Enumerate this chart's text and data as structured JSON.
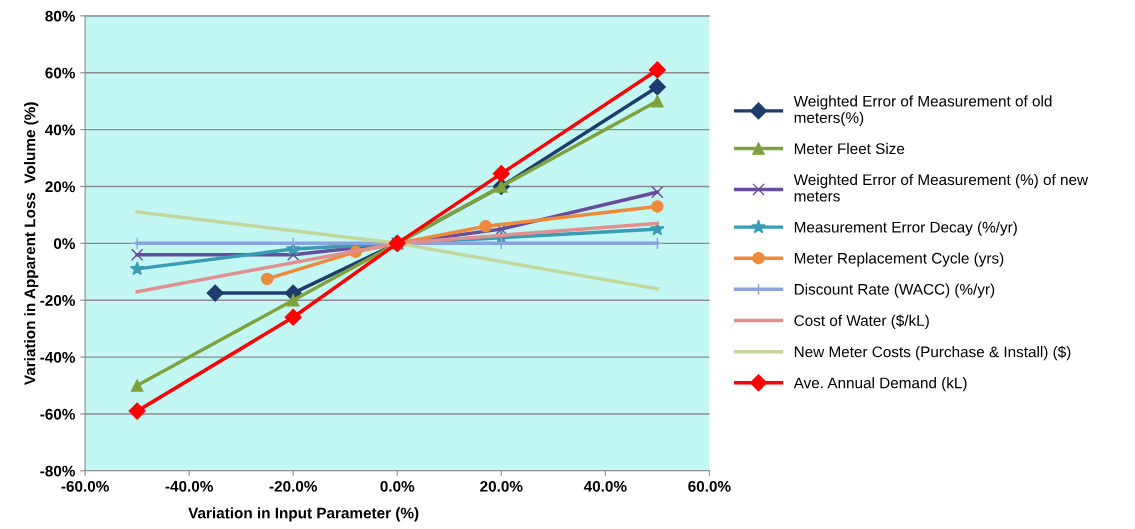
{
  "chart_data": {
    "type": "line",
    "xlabel": "Variation in Input Parameter (%)",
    "ylabel": "Variation in Apparent Loss  Volume (%)",
    "xlim": [
      -60,
      60
    ],
    "ylim": [
      -80,
      80
    ],
    "xticks": [
      {
        "value": -60,
        "label": "-60.0%"
      },
      {
        "value": -40,
        "label": "-40.0%"
      },
      {
        "value": -20,
        "label": "-20.0%"
      },
      {
        "value": 0,
        "label": "0.0%"
      },
      {
        "value": 20,
        "label": "20.0%"
      },
      {
        "value": 40,
        "label": "40.0%"
      },
      {
        "value": 60,
        "label": "60.0%"
      }
    ],
    "yticks": [
      {
        "value": -80,
        "label": "-80%"
      },
      {
        "value": -60,
        "label": "-60%"
      },
      {
        "value": -40,
        "label": "-40%"
      },
      {
        "value": -20,
        "label": "-20%"
      },
      {
        "value": 0,
        "label": "0%"
      },
      {
        "value": 20,
        "label": "20%"
      },
      {
        "value": 40,
        "label": "40%"
      },
      {
        "value": 60,
        "label": "60%"
      },
      {
        "value": 80,
        "label": "80%"
      }
    ],
    "grid": "y",
    "legend": "right",
    "series": [
      {
        "name": "Weighted Error of Measurement of old meters(%)",
        "color": "#1f3c6e",
        "marker": "diamond",
        "x": [
          -35,
          -20,
          0,
          20,
          50
        ],
        "values": [
          -17.5,
          -17.5,
          0,
          20,
          55
        ]
      },
      {
        "name": "Meter Fleet Size",
        "color": "#7fa23c",
        "marker": "triangle",
        "x": [
          -50,
          -20,
          0,
          20,
          50
        ],
        "values": [
          -50,
          -20,
          0,
          20,
          50
        ]
      },
      {
        "name": "Weighted Error of Measurement (%) of new meters",
        "color": "#6a4c9c",
        "marker": "cross",
        "x": [
          -50,
          -20,
          0,
          20,
          50
        ],
        "values": [
          -4,
          -4,
          0,
          5,
          18
        ]
      },
      {
        "name": "Measurement Error Decay (%/yr)",
        "color": "#3a9cb4",
        "marker": "star",
        "x": [
          -50,
          -20,
          0,
          20,
          50
        ],
        "values": [
          -9,
          -2,
          0,
          2,
          5
        ]
      },
      {
        "name": "Meter Replacement Cycle (yrs)",
        "color": "#ee8a3c",
        "marker": "circle",
        "x": [
          -25,
          -8,
          0,
          17,
          50
        ],
        "values": [
          -12.5,
          -3,
          0,
          6,
          13
        ]
      },
      {
        "name": "Discount Rate (WACC) (%/yr)",
        "color": "#8aa4dc",
        "marker": "plus",
        "x": [
          -50,
          -20,
          0,
          20,
          50
        ],
        "values": [
          0,
          0,
          0,
          0,
          0
        ]
      },
      {
        "name": "Cost of Water ($/kL)",
        "color": "#e0908e",
        "marker": "none",
        "x": [
          -50,
          0,
          50
        ],
        "values": [
          -17,
          0,
          7
        ]
      },
      {
        "name": "New Meter Costs (Purchase & Install) ($)",
        "color": "#c3d69b",
        "marker": "none",
        "x": [
          -50,
          0,
          50
        ],
        "values": [
          11,
          0,
          -16
        ]
      },
      {
        "name": "Ave. Annual Demand (kL)",
        "color": "#ff0000",
        "marker": "diamond",
        "x": [
          -50,
          -20,
          0,
          20,
          50
        ],
        "values": [
          -59,
          -26,
          0,
          24.5,
          61
        ]
      }
    ]
  }
}
